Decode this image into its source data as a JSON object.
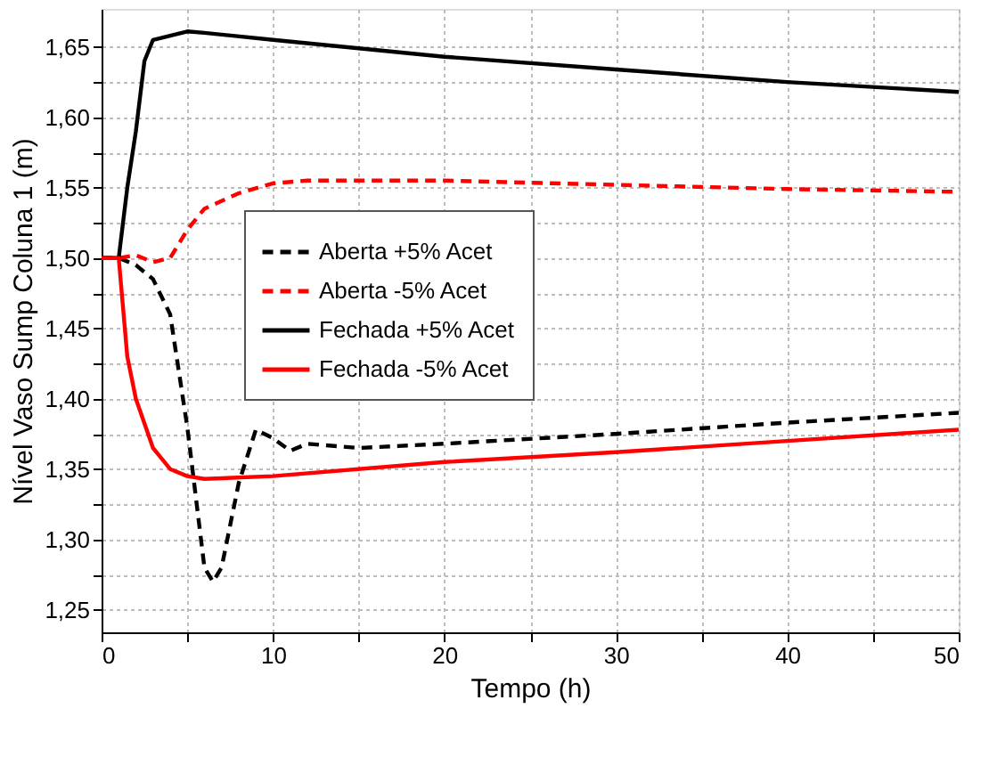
{
  "chart_data": {
    "type": "line",
    "xlabel": "Tempo (h)",
    "ylabel": "Nível Vaso Sump Coluna 1 (m)",
    "xlim": [
      0,
      50
    ],
    "ylim": [
      1.234,
      1.677
    ],
    "xticks": [
      0,
      {
        "value": 5,
        "label": null
      },
      10,
      {
        "value": 15,
        "label": null
      },
      20,
      {
        "value": 25,
        "label": null
      },
      30,
      {
        "value": 35,
        "label": null
      },
      40,
      {
        "value": 45,
        "label": null
      },
      50
    ],
    "yticks": [
      {
        "value": 1.25,
        "label": "1,25"
      },
      {
        "value": 1.275,
        "label": null
      },
      {
        "value": 1.3,
        "label": "1,30"
      },
      {
        "value": 1.325,
        "label": null
      },
      {
        "value": 1.35,
        "label": "1,35"
      },
      {
        "value": 1.375,
        "label": null
      },
      {
        "value": 1.4,
        "label": "1,40"
      },
      {
        "value": 1.425,
        "label": null
      },
      {
        "value": 1.45,
        "label": "1,45"
      },
      {
        "value": 1.475,
        "label": null
      },
      {
        "value": 1.5,
        "label": "1,50"
      },
      {
        "value": 1.525,
        "label": null
      },
      {
        "value": 1.55,
        "label": "1,55"
      },
      {
        "value": 1.575,
        "label": null
      },
      {
        "value": 1.6,
        "label": "1,60"
      },
      {
        "value": 1.625,
        "label": null
      },
      {
        "value": 1.65,
        "label": "1,65"
      }
    ],
    "grid": true,
    "legend": "center",
    "marker": "none",
    "series": [
      {
        "name": "Aberta +5% Acet",
        "color": "#000000",
        "line_style": "dashed",
        "x": [
          0,
          1,
          2,
          3,
          4,
          5,
          6,
          6.5,
          7,
          8,
          9,
          10,
          11,
          12,
          15,
          20,
          30,
          40,
          50
        ],
        "values": [
          1.5,
          1.5,
          1.495,
          1.485,
          1.46,
          1.38,
          1.28,
          1.27,
          1.28,
          1.34,
          1.378,
          1.372,
          1.363,
          1.368,
          1.365,
          1.368,
          1.375,
          1.383,
          1.39
        ]
      },
      {
        "name": "Aberta -5% Acet",
        "color": "#ff0000",
        "line_style": "dashed",
        "x": [
          0,
          1,
          2,
          3,
          4,
          5,
          6,
          8,
          10,
          12,
          20,
          30,
          40,
          50
        ],
        "values": [
          1.5,
          1.5,
          1.502,
          1.497,
          1.5,
          1.52,
          1.535,
          1.546,
          1.553,
          1.555,
          1.555,
          1.552,
          1.549,
          1.547
        ]
      },
      {
        "name": "Fechada +5% Acet",
        "color": "#000000",
        "line_style": "solid",
        "x": [
          0,
          1,
          1.5,
          2,
          2.5,
          3,
          4,
          5,
          6,
          10,
          20,
          30,
          40,
          50
        ],
        "values": [
          1.5,
          1.5,
          1.55,
          1.59,
          1.64,
          1.655,
          1.658,
          1.661,
          1.66,
          1.655,
          1.643,
          1.634,
          1.625,
          1.618
        ]
      },
      {
        "name": "Fechada -5% Acet",
        "color": "#ff0000",
        "line_style": "solid",
        "x": [
          0,
          1,
          1.5,
          2,
          3,
          4,
          5,
          6,
          10,
          20,
          30,
          40,
          50
        ],
        "values": [
          1.5,
          1.5,
          1.43,
          1.4,
          1.365,
          1.35,
          1.345,
          1.343,
          1.345,
          1.355,
          1.362,
          1.37,
          1.378
        ]
      }
    ]
  }
}
